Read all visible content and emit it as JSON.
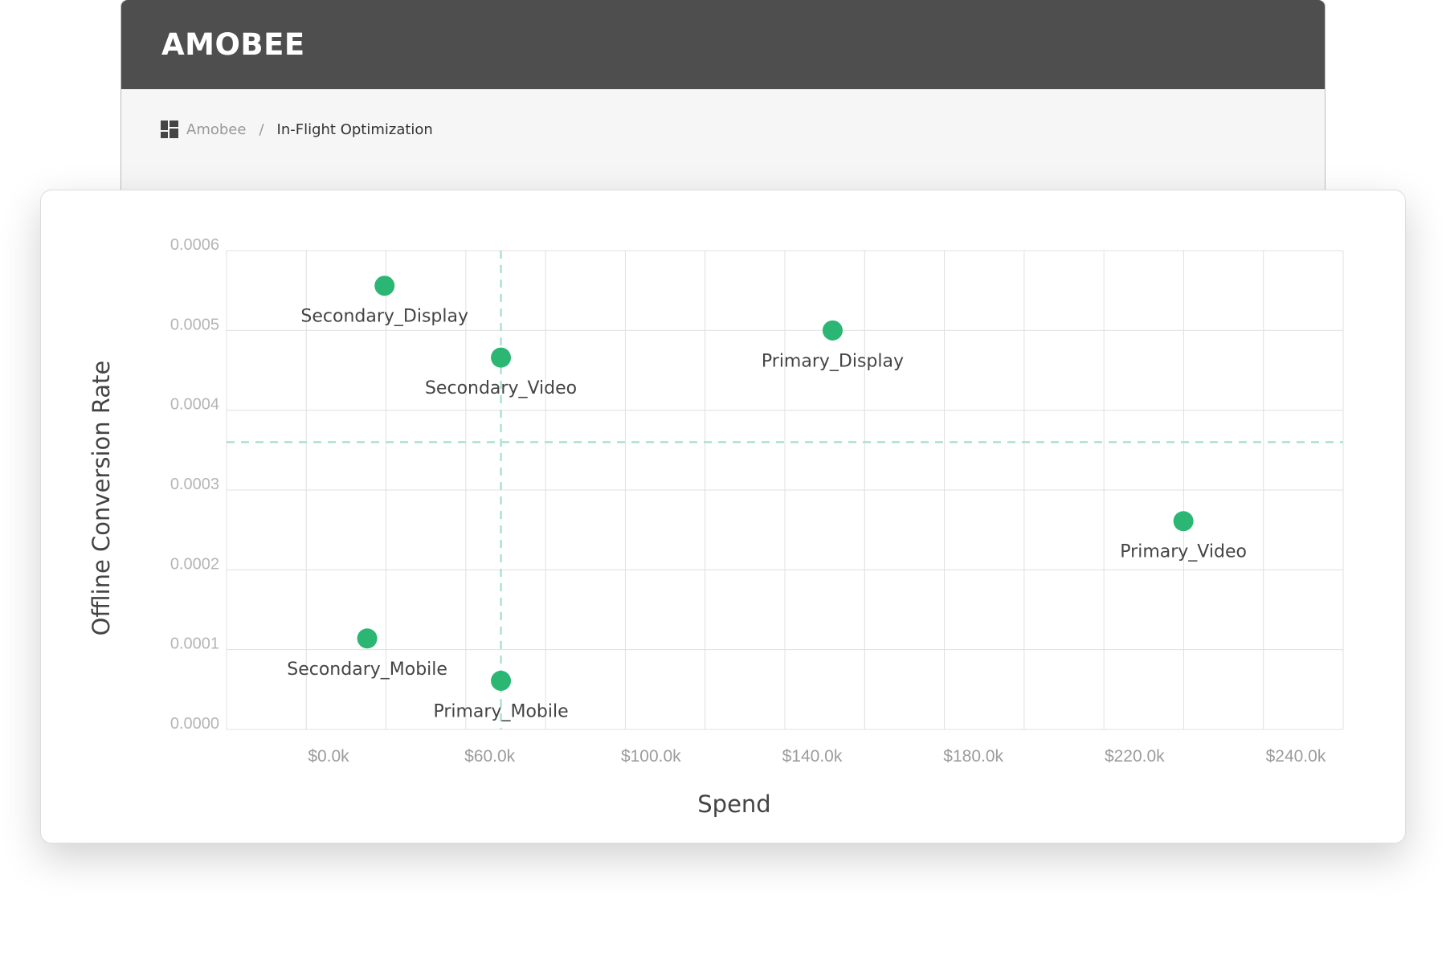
{
  "app": {
    "logo": "AMOBEE",
    "breadcrumb": {
      "icon": "dashboard-grid-icon",
      "root": "Amobee",
      "separator": "/",
      "current": "In-Flight Optimization"
    }
  },
  "colors": {
    "header_bg": "#4e4e4e",
    "point": "#2bb673",
    "reference_line": "#a8e4d2",
    "grid": "#e0e0e0"
  },
  "chart_data": {
    "type": "scatter",
    "xlabel": "Spend",
    "ylabel": "Offline Conversion Rate",
    "x_tick_labels": [
      "$0.0k",
      "$60.0k",
      "$100.0k",
      "$140.0k",
      "$180.0k",
      "$220.0k",
      "$240.0k"
    ],
    "y_tick_labels": [
      "0.0000",
      "0.0001",
      "0.0002",
      "0.0003",
      "0.0004",
      "0.0005",
      "0.0006"
    ],
    "ylim": [
      0,
      0.0006
    ],
    "grid": true,
    "reference_lines": {
      "x": 65000,
      "y": 0.00036
    },
    "points": [
      {
        "label": "Secondary_Display",
        "x": 31500,
        "y": 0.000556
      },
      {
        "label": "Secondary_Video",
        "x": 65000,
        "y": 0.000466
      },
      {
        "label": "Primary_Display",
        "x": 160500,
        "y": 0.0005
      },
      {
        "label": "Primary_Video",
        "x": 261500,
        "y": 0.000261
      },
      {
        "label": "Secondary_Mobile",
        "x": 26500,
        "y": 0.000114
      },
      {
        "label": "Primary_Mobile",
        "x": 65000,
        "y": 6.1e-05
      }
    ]
  }
}
